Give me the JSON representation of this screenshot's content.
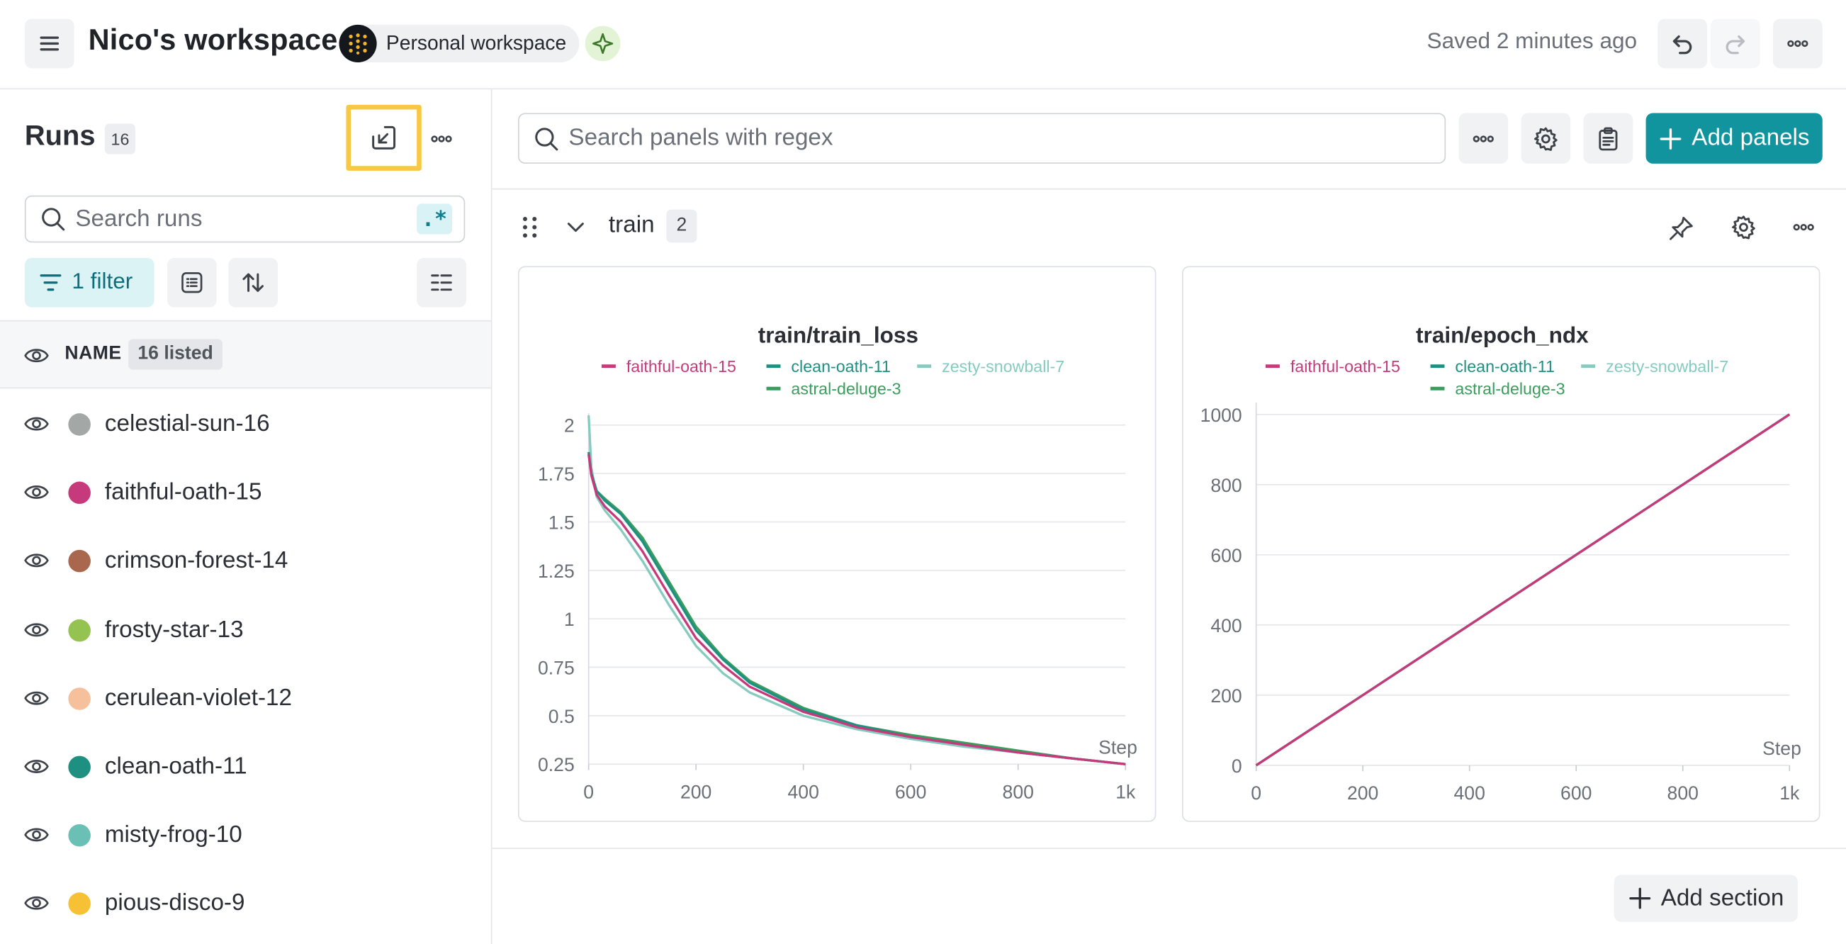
{
  "header": {
    "workspace_title": "Nico's workspace",
    "workspace_chip": "Personal workspace",
    "saved_status": "Saved 2 minutes ago",
    "icons": [
      "menu-icon",
      "workspace-logo-icon",
      "sparkle-icon",
      "undo-icon",
      "redo-icon",
      "more-icon"
    ]
  },
  "sidebar": {
    "title": "Runs",
    "run_count": "16",
    "search_placeholder": "Search runs",
    "regex_label": ".*",
    "filter_label": "1 filter",
    "name_column": "NAME",
    "listed_label": "16 listed",
    "runs": [
      {
        "name": "celestial-sun-16",
        "color": "#a3a7a6"
      },
      {
        "name": "faithful-oath-15",
        "color": "#c63a7c"
      },
      {
        "name": "crimson-forest-14",
        "color": "#a9674d"
      },
      {
        "name": "frosty-star-13",
        "color": "#94c352"
      },
      {
        "name": "cerulean-violet-12",
        "color": "#f6c09c"
      },
      {
        "name": "clean-oath-11",
        "color": "#1d9082"
      },
      {
        "name": "misty-frog-10",
        "color": "#6bc0b6"
      },
      {
        "name": "pious-disco-9",
        "color": "#f7c136"
      }
    ]
  },
  "main": {
    "panel_search_placeholder": "Search panels with regex",
    "add_panels_label": "Add panels",
    "section_name": "train",
    "section_count": "2",
    "add_section_label": "Add section"
  },
  "chart_data": [
    {
      "type": "line",
      "title": "train/train_loss",
      "xlabel": "Step",
      "ylabel": "",
      "xlim": [
        0,
        1000
      ],
      "ylim": [
        0.25,
        2
      ],
      "x_ticks": [
        "0",
        "200",
        "400",
        "600",
        "800",
        "1k"
      ],
      "y_ticks": [
        "0.25",
        "0.5",
        "0.75",
        "1",
        "1.25",
        "1.5",
        "1.75",
        "2"
      ],
      "legend_position": "top",
      "series": [
        {
          "name": "faithful-oath-15",
          "color": "#c63a7c",
          "x": [
            0,
            5,
            15,
            30,
            60,
            100,
            150,
            200,
            250,
            300,
            400,
            500,
            600,
            700,
            800,
            900,
            1000
          ],
          "y": [
            1.85,
            1.74,
            1.64,
            1.58,
            1.5,
            1.35,
            1.12,
            0.9,
            0.76,
            0.65,
            0.52,
            0.44,
            0.39,
            0.35,
            0.31,
            0.28,
            0.25
          ]
        },
        {
          "name": "clean-oath-11",
          "color": "#1d9082",
          "x": [
            0,
            5,
            15,
            30,
            60,
            100,
            150,
            200,
            250,
            300,
            400,
            500,
            600,
            700,
            800,
            900,
            1000
          ],
          "y": [
            1.86,
            1.75,
            1.66,
            1.61,
            1.54,
            1.4,
            1.17,
            0.94,
            0.79,
            0.67,
            0.53,
            0.45,
            0.39,
            0.35,
            0.31,
            0.28,
            0.25
          ]
        },
        {
          "name": "zesty-snowball-7",
          "color": "#85cbbf",
          "x": [
            0,
            5,
            15,
            30,
            60,
            100,
            150,
            200,
            250,
            300,
            400,
            500,
            600,
            700,
            800,
            900,
            1000
          ],
          "y": [
            2.05,
            1.78,
            1.63,
            1.56,
            1.46,
            1.3,
            1.07,
            0.86,
            0.72,
            0.62,
            0.5,
            0.43,
            0.38,
            0.34,
            0.31,
            0.28,
            0.25
          ]
        },
        {
          "name": "astral-deluge-3",
          "color": "#3a9d5d",
          "x": [
            0,
            5,
            15,
            30,
            60,
            100,
            150,
            200,
            250,
            300,
            400,
            500,
            600,
            700,
            800,
            900,
            1000
          ],
          "y": [
            1.85,
            1.75,
            1.66,
            1.62,
            1.55,
            1.42,
            1.19,
            0.96,
            0.8,
            0.68,
            0.54,
            0.45,
            0.4,
            0.36,
            0.32,
            0.28,
            0.25
          ]
        }
      ]
    },
    {
      "type": "line",
      "title": "train/epoch_ndx",
      "xlabel": "Step",
      "ylabel": "",
      "xlim": [
        0,
        1000
      ],
      "ylim": [
        0,
        1000
      ],
      "x_ticks": [
        "0",
        "200",
        "400",
        "600",
        "800",
        "1k"
      ],
      "y_ticks": [
        "0",
        "200",
        "400",
        "600",
        "800",
        "1000"
      ],
      "legend_position": "top",
      "series": [
        {
          "name": "faithful-oath-15",
          "color": "#c63a7c",
          "x": [
            0,
            1000
          ],
          "y": [
            0,
            1000
          ]
        },
        {
          "name": "clean-oath-11",
          "color": "#1d9082",
          "x": [
            0,
            1000
          ],
          "y": [
            0,
            1000
          ]
        },
        {
          "name": "zesty-snowball-7",
          "color": "#85cbbf",
          "x": [
            0,
            1000
          ],
          "y": [
            0,
            1000
          ]
        },
        {
          "name": "astral-deluge-3",
          "color": "#3a9d5d",
          "x": [
            0,
            1000
          ],
          "y": [
            0,
            1000
          ]
        }
      ]
    }
  ]
}
